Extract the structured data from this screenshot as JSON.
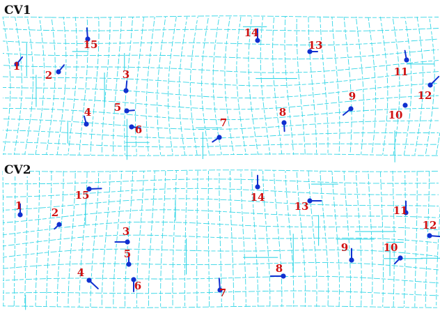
{
  "panels": [
    {
      "title": "CV1",
      "points": [
        {
          "label": "1",
          "dir": "up-right"
        },
        {
          "label": "2",
          "dir": "up-right"
        },
        {
          "label": "3",
          "dir": "up"
        },
        {
          "label": "4",
          "dir": "up"
        },
        {
          "label": "5",
          "dir": "right"
        },
        {
          "label": "6",
          "dir": "right"
        },
        {
          "label": "7",
          "dir": "down-left"
        },
        {
          "label": "8",
          "dir": "down"
        },
        {
          "label": "9",
          "dir": "down-left"
        },
        {
          "label": "10",
          "dir": "none"
        },
        {
          "label": "11",
          "dir": "up"
        },
        {
          "label": "12",
          "dir": "up-right"
        },
        {
          "label": "13",
          "dir": "right"
        },
        {
          "label": "14",
          "dir": "up"
        },
        {
          "label": "15",
          "dir": "up"
        }
      ]
    },
    {
      "title": "CV2",
      "points": [
        {
          "label": "1",
          "dir": "up"
        },
        {
          "label": "2",
          "dir": "down-left"
        },
        {
          "label": "3",
          "dir": "left"
        },
        {
          "label": "4",
          "dir": "down-right"
        },
        {
          "label": "5",
          "dir": "up"
        },
        {
          "label": "6",
          "dir": "down"
        },
        {
          "label": "7",
          "dir": "up"
        },
        {
          "label": "8",
          "dir": "left"
        },
        {
          "label": "9",
          "dir": "up"
        },
        {
          "label": "10",
          "dir": "down-left"
        },
        {
          "label": "11",
          "dir": "up"
        },
        {
          "label": "12",
          "dir": "right"
        },
        {
          "label": "13",
          "dir": "right"
        },
        {
          "label": "14",
          "dir": "up"
        },
        {
          "label": "15",
          "dir": "right"
        }
      ]
    }
  ],
  "colors": {
    "grid": "#33d6e6",
    "point": "#1030d0",
    "label": "#d01010",
    "title": "#111111"
  }
}
